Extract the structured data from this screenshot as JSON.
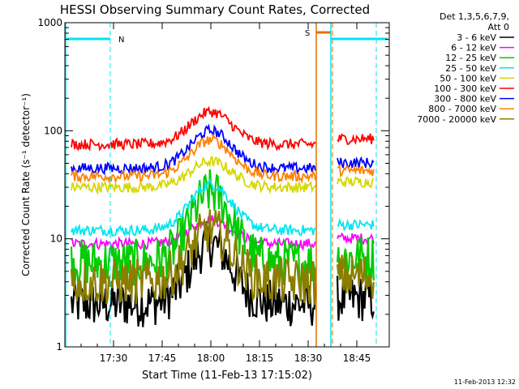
{
  "chart_data": {
    "type": "line",
    "title": "HESSI Observing Summary Count Rates, Corrected",
    "xlabel": "Start Time (11-Feb-13 17:15:02)",
    "ylabel": "Corrected Count Rate (s⁻¹ detector⁻¹)",
    "y_scale": "log",
    "ylim": [
      1,
      1000
    ],
    "xlim": [
      "17:15:02",
      "18:55:00"
    ],
    "x_ticks": [
      {
        "label": "17:30",
        "min": 15.0
      },
      {
        "label": "17:45",
        "min": 30.0
      },
      {
        "label": "18:00",
        "min": 45.0
      },
      {
        "label": "18:15",
        "min": 60.0
      },
      {
        "label": "18:30",
        "min": 75.0
      },
      {
        "label": "18:45",
        "min": 90.0
      }
    ],
    "y_ticks": [
      {
        "label": "1",
        "value": 1
      },
      {
        "label": "10",
        "value": 10
      },
      {
        "label": "100",
        "value": 100
      },
      {
        "label": "1000",
        "value": 1000
      }
    ],
    "legend_header": [
      "Det 1,3,5,6,7,9,",
      "Att 0"
    ],
    "legend_placement": "right",
    "series": [
      {
        "name": "3 - 6 keV",
        "color": "#000000",
        "base": 2.5,
        "peak": 9
      },
      {
        "name": "6 - 12 keV",
        "color": "#ff00ff",
        "base": 9,
        "peak": 15
      },
      {
        "name": "12 - 25 keV",
        "color": "#00cc00",
        "base": 6,
        "peak": 27
      },
      {
        "name": "25 - 50 keV",
        "color": "#00e5ee",
        "base": 12,
        "peak": 32
      },
      {
        "name": "50 - 100 keV",
        "color": "#d6d600",
        "base": 30,
        "peak": 52
      },
      {
        "name": "100 - 300 keV",
        "color": "#ff0000",
        "base": 75,
        "peak": 150
      },
      {
        "name": "300 - 800 keV",
        "color": "#0000ff",
        "base": 45,
        "peak": 100
      },
      {
        "name": "800 - 7000 keV",
        "color": "#ff8000",
        "base": 38,
        "peak": 82
      },
      {
        "name": "7000 - 20000 keV",
        "color": "#8b7d00",
        "base": 4,
        "peak": 12
      }
    ],
    "flags": [
      {
        "label": "N",
        "color": "#00e5ee"
      },
      {
        "label": "S",
        "color": "#e07000"
      }
    ],
    "timestamp": "11-Feb-2013 12:32"
  }
}
